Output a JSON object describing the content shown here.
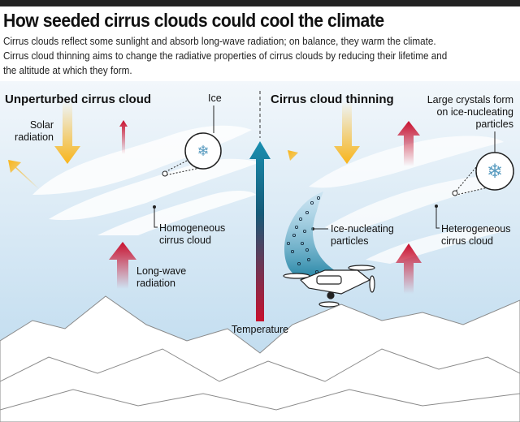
{
  "header": {
    "title": "How seeded cirrus clouds could cool the climate",
    "intro": [
      "Cirrus clouds reflect some sunlight and absorb long-wave radiation; on balance, they warm the climate.",
      "Cirrus cloud thinning aims to change the radiative properties of cirrus clouds by reducing their lifetime and",
      "the altitude at which they form."
    ]
  },
  "left_panel": {
    "heading": "Unperturbed cirrus cloud",
    "solar": [
      "Solar",
      "radiation"
    ],
    "ice": "Ice",
    "cloud": [
      "Homogeneous",
      "cirrus cloud"
    ],
    "longwave": [
      "Long-wave",
      "radiation"
    ]
  },
  "center": {
    "temperature": "Temperature"
  },
  "right_panel": {
    "heading": "Cirrus cloud thinning",
    "crystals": [
      "Large crystals form",
      "on ice-nucleating",
      "particles"
    ],
    "particles": [
      "Ice-nucleating",
      "particles"
    ],
    "cloud": [
      "Heterogeneous",
      "cirrus cloud"
    ]
  },
  "colors": {
    "solar": "#f9b51a",
    "longwave": "#c8102e",
    "temp_top": "#1a7fa0",
    "temp_bottom": "#c8102e",
    "sky_top": "#f2f7fb",
    "sky_bottom": "#bcdaee"
  },
  "icons": [
    "snowflake-icon",
    "drone-icon",
    "mountains"
  ]
}
